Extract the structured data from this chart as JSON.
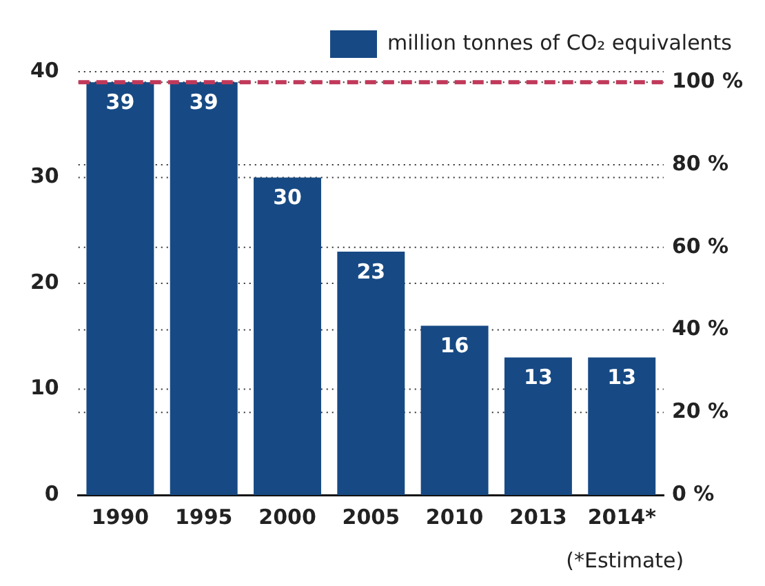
{
  "chart_data": {
    "type": "bar",
    "categories": [
      "1990",
      "1995",
      "2000",
      "2005",
      "2010",
      "2013",
      "2014*"
    ],
    "series": [
      {
        "name": "million tonnes of CO₂ equivalents",
        "color": "#174a84",
        "values": [
          39,
          39,
          30,
          23,
          16,
          13,
          13
        ]
      }
    ],
    "ylim": [
      0,
      40
    ],
    "yticks": [
      0,
      10,
      20,
      30,
      40
    ],
    "y2lim": [
      0,
      102.56
    ],
    "y2ticks": [
      {
        "value": 0,
        "label": "0 %"
      },
      {
        "value": 20,
        "label": "20 %"
      },
      {
        "value": 40,
        "label": "40 %"
      },
      {
        "value": 60,
        "label": "60 %"
      },
      {
        "value": 80,
        "label": "80 %"
      },
      {
        "value": 100,
        "label": "100 %"
      }
    ],
    "ref_lines": [
      {
        "axis": "y2",
        "value": 100,
        "color": "#c0395a",
        "line_style": "dashed"
      }
    ],
    "data_labels": true,
    "grid": true,
    "legend": "top right",
    "annotations": [
      "(*Estimate)"
    ]
  }
}
